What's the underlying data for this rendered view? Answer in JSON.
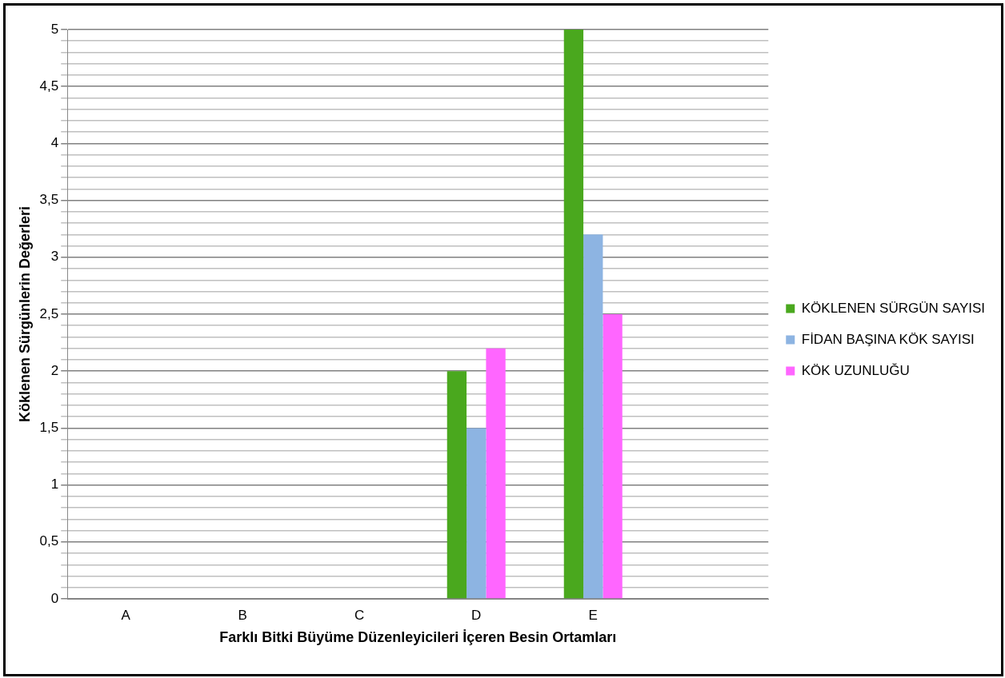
{
  "chart_data": {
    "type": "bar",
    "xlabel": "Farklı Bitki Büyüme Düzenleyicileri İçeren Besin Ortamları",
    "ylabel": "Köklenen Sürgünlerin Değerleri",
    "categories": [
      "A",
      "B",
      "C",
      "D",
      "E",
      null
    ],
    "series": [
      {
        "name": "KÖKLENEN SÜRGÜN SAYISI",
        "color": "#4aa81e",
        "values": [
          0,
          0,
          0,
          2,
          5,
          null
        ]
      },
      {
        "name": "FİDAN BAŞINA KÖK SAYISI",
        "color": "#8db4e2",
        "values": [
          0,
          0,
          0,
          1.5,
          3.2,
          null
        ]
      },
      {
        "name": "KÖK UZUNLUĞU",
        "color": "#ff66ff",
        "values": [
          0,
          0,
          0,
          2.2,
          2.5,
          null
        ]
      }
    ],
    "ylim": [
      0,
      5
    ],
    "yticks": [
      0,
      {
        "value": 0.1,
        "label": null
      },
      {
        "value": 0.2,
        "label": null
      },
      {
        "value": 0.3,
        "label": null
      },
      {
        "value": 0.4,
        "label": null
      },
      {
        "value": 0.5,
        "label": "0,5"
      },
      {
        "value": 0.6,
        "label": null
      },
      {
        "value": 0.7,
        "label": null
      },
      {
        "value": 0.8,
        "label": null
      },
      {
        "value": 0.9,
        "label": null
      },
      1,
      {
        "value": 1.1,
        "label": null
      },
      {
        "value": 1.2,
        "label": null
      },
      {
        "value": 1.3,
        "label": null
      },
      {
        "value": 1.4,
        "label": null
      },
      {
        "value": 1.5,
        "label": "1,5"
      },
      {
        "value": 1.6,
        "label": null
      },
      {
        "value": 1.7,
        "label": null
      },
      {
        "value": 1.8,
        "label": null
      },
      {
        "value": 1.9,
        "label": null
      },
      2,
      {
        "value": 2.1,
        "label": null
      },
      {
        "value": 2.2,
        "label": null
      },
      {
        "value": 2.3,
        "label": null
      },
      {
        "value": 2.4,
        "label": null
      },
      {
        "value": 2.5,
        "label": "2,5"
      },
      {
        "value": 2.6,
        "label": null
      },
      {
        "value": 2.7,
        "label": null
      },
      {
        "value": 2.8,
        "label": null
      },
      {
        "value": 2.9,
        "label": null
      },
      3,
      {
        "value": 3.1,
        "label": null
      },
      {
        "value": 3.2,
        "label": null
      },
      {
        "value": 3.3,
        "label": null
      },
      {
        "value": 3.4,
        "label": null
      },
      {
        "value": 3.5,
        "label": "3,5"
      },
      {
        "value": 3.6,
        "label": null
      },
      {
        "value": 3.7,
        "label": null
      },
      {
        "value": 3.8,
        "label": null
      },
      {
        "value": 3.9,
        "label": null
      },
      4,
      {
        "value": 4.1,
        "label": null
      },
      {
        "value": 4.2,
        "label": null
      },
      {
        "value": 4.3,
        "label": null
      },
      {
        "value": 4.4,
        "label": null
      },
      {
        "value": 4.5,
        "label": "4,5"
      },
      {
        "value": 4.6,
        "label": null
      },
      {
        "value": 4.7,
        "label": null
      },
      {
        "value": 4.8,
        "label": null
      },
      {
        "value": 4.9,
        "label": null
      },
      5
    ],
    "grid": "y",
    "legend": "right"
  }
}
